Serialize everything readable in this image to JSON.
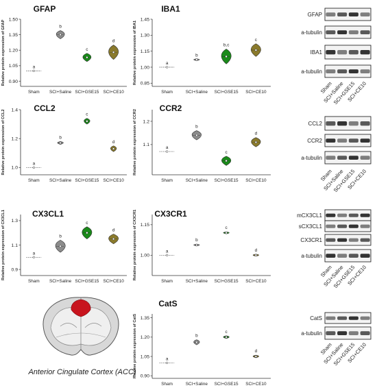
{
  "categories": [
    "Sham",
    "SCI+Saline",
    "SCI+GSE15",
    "SCI+CE10"
  ],
  "group_colors": [
    "#ffffff",
    "#8c8c8c",
    "#1a8a1a",
    "#8a7a2c"
  ],
  "chart_data": [
    {
      "type": "violin",
      "title": "GFAP",
      "ylabel": "Relative protein expression of GFAP",
      "ylim": [
        0.85,
        1.5
      ],
      "yticks": [
        "0.90",
        "1.05",
        "1.20",
        "1.35",
        "1.50"
      ],
      "ytick_values": [
        0.9,
        1.05,
        1.2,
        1.35,
        1.5
      ],
      "values": [
        1.0,
        1.35,
        1.13,
        1.18
      ],
      "spread": [
        0,
        0.04,
        0.04,
        0.07
      ],
      "letters": [
        "a",
        "b",
        "c",
        "d"
      ]
    },
    {
      "type": "violin",
      "title": "IBA1",
      "ylabel": "Relative protein expression of IBA1",
      "ylim": [
        0.82,
        1.45
      ],
      "yticks": [
        "0.85",
        "1.00",
        "1.15",
        "1.30",
        "1.45"
      ],
      "ytick_values": [
        0.85,
        1.0,
        1.15,
        1.3,
        1.45
      ],
      "values": [
        1.0,
        1.07,
        1.1,
        1.16
      ],
      "spread": [
        0,
        0.005,
        0.07,
        0.06
      ],
      "letters": [
        "a",
        "b",
        "b,c",
        "c"
      ]
    },
    {
      "type": "violin",
      "title": "CCL2",
      "ylabel": "Relative protein expression of CCL2",
      "ylim": [
        0.95,
        1.4
      ],
      "yticks": [
        "1.0",
        "1.2",
        "1.4"
      ],
      "ytick_values": [
        1.0,
        1.2,
        1.4
      ],
      "values": [
        1.0,
        1.17,
        1.32,
        1.13
      ],
      "spread": [
        0,
        0.01,
        0.02,
        0.02
      ],
      "letters": [
        "a",
        "b",
        "c",
        "d"
      ]
    },
    {
      "type": "violin",
      "title": "CCR2",
      "ylabel": "Relative protein expression of CCR2",
      "ylim": [
        0.97,
        1.25
      ],
      "yticks": [
        "1.1",
        "1.2"
      ],
      "ytick_values": [
        1.1,
        1.2
      ],
      "values": [
        1.07,
        1.14,
        1.03,
        1.11
      ],
      "spread": [
        0,
        0.02,
        0.02,
        0.02
      ],
      "letters": [
        "a",
        "b",
        "c",
        "d"
      ]
    },
    {
      "type": "violin",
      "title": "CX3CL1",
      "ylabel": "Relative protein expression of CX3CL1",
      "ylim": [
        0.85,
        1.35
      ],
      "yticks": [
        "0.9",
        "1.1",
        "1.3"
      ],
      "ytick_values": [
        0.9,
        1.1,
        1.3
      ],
      "values": [
        1.0,
        1.09,
        1.2,
        1.15
      ],
      "spread": [
        0,
        0.05,
        0.05,
        0.04
      ],
      "letters": [
        "a",
        "b",
        "c",
        "d"
      ]
    },
    {
      "type": "violin",
      "title": "CX3CR1",
      "ylabel": "Relative protein expression of CX3CR1",
      "ylim": [
        0.9,
        1.2
      ],
      "yticks": [
        "1.00",
        "1.15"
      ],
      "ytick_values": [
        1.0,
        1.15
      ],
      "values": [
        1.0,
        1.05,
        1.11,
        1.0
      ],
      "spread": [
        0,
        0.005,
        0.005,
        0.005
      ],
      "letters": [
        "a",
        "b",
        "c",
        "d"
      ]
    },
    {
      "type": "violin",
      "title": "CatS",
      "ylabel": "Relative protein expression of CatS",
      "ylim": [
        0.88,
        1.38
      ],
      "yticks": [
        "0.90",
        "1.05",
        "1.20",
        "1.35"
      ],
      "ytick_values": [
        0.9,
        1.05,
        1.2,
        1.35
      ],
      "values": [
        1.0,
        1.16,
        1.2,
        1.05
      ],
      "spread": [
        0,
        0.02,
        0.01,
        0.01
      ],
      "letters": [
        "a",
        "b",
        "c",
        "d"
      ]
    }
  ],
  "western_blots": [
    {
      "rows": [
        "GFAP",
        "a-tubulin",
        "IBA1",
        "a-tubulin"
      ]
    },
    {
      "rows": [
        "CCL2",
        "CCR2",
        "a-tubulin"
      ]
    },
    {
      "rows": [
        "mCX3CL1",
        "sCX3CL1",
        "CX3CR1",
        "a-tubulin"
      ]
    },
    {
      "rows": [
        "CatS",
        "a-tubulin"
      ]
    }
  ],
  "brain": {
    "caption": "Anterior Cingulate Cortex (ACC)",
    "highlight_color": "#c8141e"
  }
}
